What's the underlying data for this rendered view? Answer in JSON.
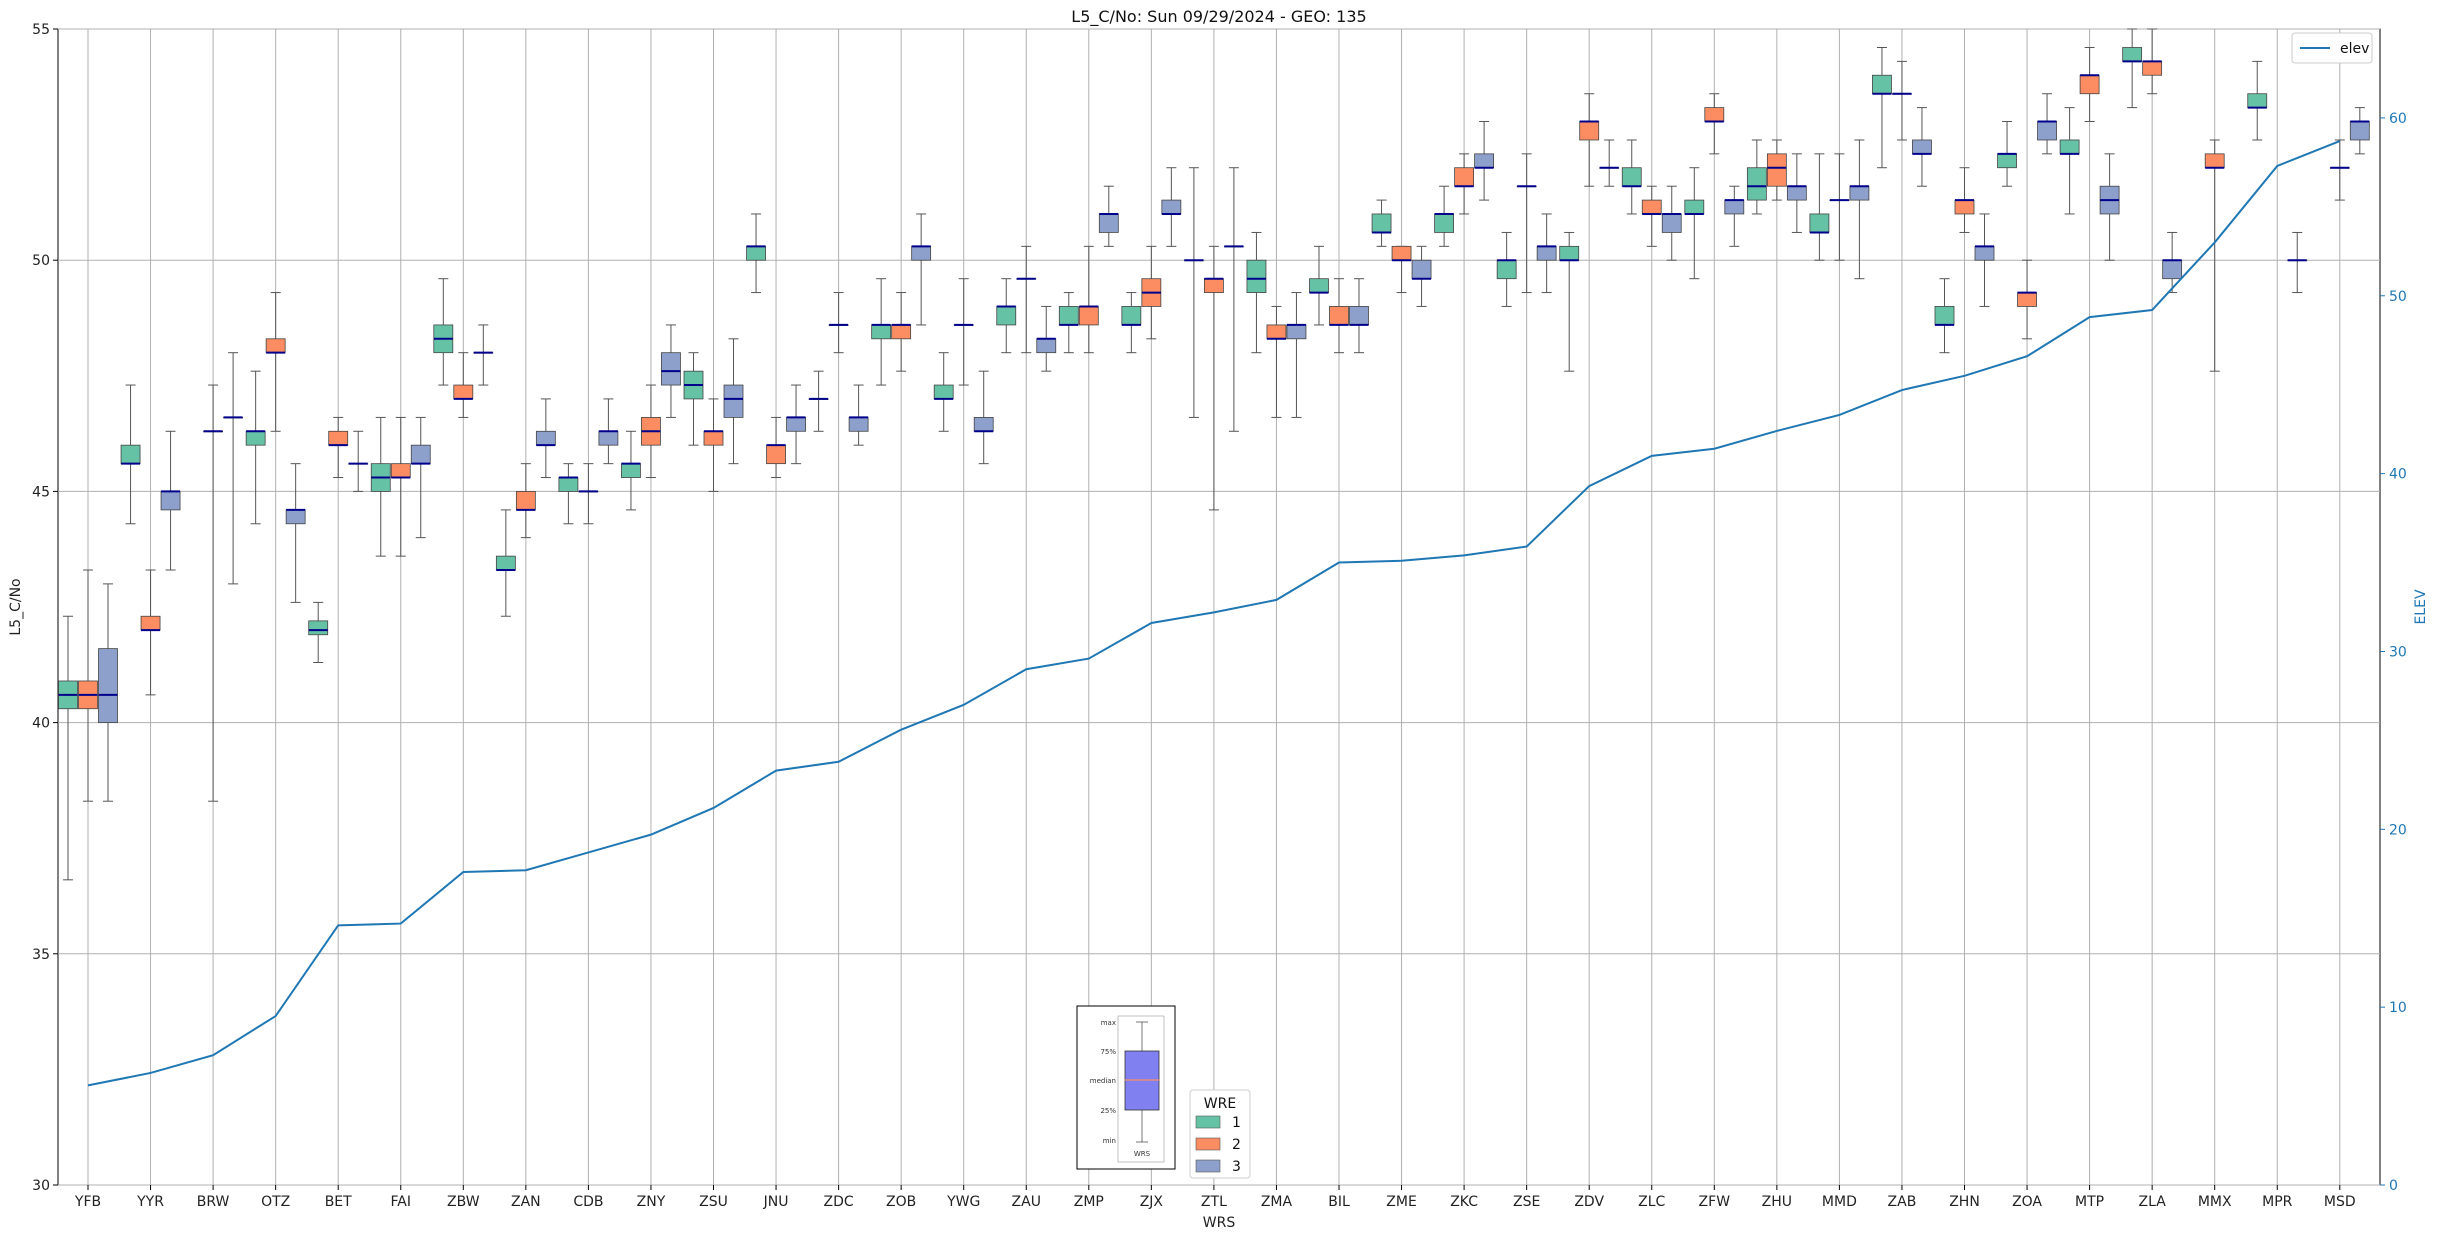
{
  "chart_data": {
    "type": "box",
    "title": "L5_C/No: Sun 09/29/2024 - GEO: 135",
    "xlabel": "WRS",
    "ylabel": "L5_C/No",
    "y2label": "ELEV",
    "ylim": [
      30,
      55
    ],
    "y2lim": [
      0,
      65
    ],
    "yticks": [
      30,
      35,
      40,
      45,
      50,
      55
    ],
    "y2ticks": [
      0,
      10,
      20,
      30,
      40,
      50,
      60
    ],
    "grid": true,
    "categories": [
      "YFB",
      "YYR",
      "BRW",
      "OTZ",
      "BET",
      "FAI",
      "ZBW",
      "ZAN",
      "CDB",
      "ZNY",
      "ZSU",
      "JNU",
      "ZDC",
      "ZOB",
      "YWG",
      "ZAU",
      "ZMP",
      "ZJX",
      "ZTL",
      "ZMA",
      "BIL",
      "ZME",
      "ZKC",
      "ZSE",
      "ZDV",
      "ZLC",
      "ZFW",
      "ZHU",
      "MMD",
      "ZAB",
      "ZHN",
      "ZOA",
      "MTP",
      "ZLA",
      "MMX",
      "MPR",
      "MSD"
    ],
    "colors": {
      "wre1": "#66c2a5",
      "wre2": "#fc8d62",
      "wre3": "#8da0cb",
      "median": "#00008b",
      "elev": "#1f77b4",
      "whisker": "#555555"
    },
    "series": [
      {
        "name": "1",
        "boxes": [
          [
            36.6,
            40.3,
            40.6,
            40.9,
            42.3
          ],
          [
            44.3,
            45.6,
            45.6,
            46.0,
            47.3
          ],
          null,
          [
            44.3,
            46.0,
            46.3,
            46.3,
            47.6
          ],
          [
            41.3,
            41.9,
            42.0,
            42.2,
            42.6
          ],
          [
            43.6,
            45.0,
            45.3,
            45.6,
            46.6
          ],
          [
            47.3,
            48.0,
            48.3,
            48.6,
            49.6
          ],
          [
            42.3,
            43.3,
            43.3,
            43.6,
            44.6
          ],
          [
            44.3,
            45.0,
            45.3,
            45.3,
            45.6
          ],
          [
            44.6,
            45.3,
            45.6,
            45.6,
            46.3
          ],
          [
            46.0,
            47.0,
            47.3,
            47.6,
            48.0
          ],
          [
            49.3,
            50.0,
            50.3,
            50.3,
            51.0
          ],
          [
            46.3,
            47.0,
            47.0,
            47.0,
            47.6
          ],
          [
            47.3,
            48.3,
            48.6,
            48.6,
            49.6
          ],
          [
            46.3,
            47.0,
            47.0,
            47.3,
            48.0
          ],
          [
            48.0,
            48.6,
            49.0,
            49.0,
            49.6
          ],
          [
            48.0,
            48.6,
            48.6,
            49.0,
            49.3
          ],
          [
            48.0,
            48.6,
            48.6,
            49.0,
            49.3
          ],
          [
            46.6,
            50.0,
            50.0,
            50.0,
            52.0
          ],
          [
            48.0,
            49.3,
            49.6,
            50.0,
            50.6
          ],
          [
            48.6,
            49.3,
            49.3,
            49.6,
            50.3
          ],
          [
            50.3,
            50.6,
            50.6,
            51.0,
            51.3
          ],
          [
            50.3,
            50.6,
            51.0,
            51.0,
            51.6
          ],
          [
            49.0,
            49.6,
            50.0,
            50.0,
            50.6
          ],
          [
            47.6,
            50.0,
            50.0,
            50.3,
            50.6
          ],
          [
            51.0,
            51.6,
            51.6,
            52.0,
            52.6
          ],
          [
            49.6,
            51.0,
            51.0,
            51.3,
            52.0
          ],
          [
            51.0,
            51.3,
            51.6,
            52.0,
            52.6
          ],
          [
            50.0,
            50.6,
            50.6,
            51.0,
            52.3
          ],
          [
            52.0,
            53.6,
            53.6,
            54.0,
            54.6
          ],
          [
            48.0,
            48.6,
            48.6,
            49.0,
            49.6
          ],
          [
            51.6,
            52.0,
            52.3,
            52.3,
            53.0
          ],
          [
            51.0,
            52.3,
            52.3,
            52.6,
            53.3
          ],
          [
            53.3,
            54.3,
            54.3,
            54.6,
            55.0
          ],
          null,
          [
            52.6,
            53.3,
            53.3,
            53.6,
            54.3
          ],
          null
        ]
      },
      {
        "name": "2",
        "boxes": [
          [
            38.3,
            40.3,
            40.6,
            40.9,
            43.3
          ],
          [
            40.6,
            42.0,
            42.0,
            42.3,
            43.3
          ],
          [
            38.3,
            46.3,
            46.3,
            46.3,
            47.3
          ],
          [
            46.3,
            48.0,
            48.0,
            48.3,
            49.3
          ],
          [
            45.3,
            46.0,
            46.0,
            46.3,
            46.6
          ],
          [
            43.6,
            45.3,
            45.3,
            45.6,
            46.6
          ],
          [
            46.6,
            47.0,
            47.0,
            47.3,
            48.0
          ],
          [
            44.0,
            44.6,
            44.6,
            45.0,
            45.6
          ],
          [
            44.3,
            45.0,
            45.0,
            45.0,
            45.6
          ],
          [
            45.3,
            46.0,
            46.3,
            46.6,
            47.3
          ],
          [
            45.0,
            46.0,
            46.3,
            46.3,
            47.0
          ],
          [
            45.3,
            45.6,
            46.0,
            46.0,
            46.6
          ],
          [
            48.0,
            48.6,
            48.6,
            48.6,
            49.3
          ],
          [
            47.6,
            48.3,
            48.6,
            48.6,
            49.3
          ],
          [
            47.3,
            48.6,
            48.6,
            48.6,
            49.6
          ],
          [
            48.0,
            49.6,
            49.6,
            49.6,
            50.3
          ],
          [
            48.0,
            48.6,
            49.0,
            49.0,
            50.3
          ],
          [
            48.3,
            49.0,
            49.3,
            49.6,
            50.3
          ],
          [
            44.6,
            49.3,
            49.6,
            49.6,
            50.3
          ],
          [
            46.6,
            48.3,
            48.3,
            48.6,
            49.0
          ],
          [
            48.0,
            48.6,
            48.6,
            49.0,
            49.6
          ],
          [
            49.3,
            50.0,
            50.0,
            50.3,
            50.3
          ],
          [
            51.0,
            51.6,
            51.6,
            52.0,
            52.3
          ],
          [
            49.3,
            51.6,
            51.6,
            51.6,
            52.3
          ],
          [
            51.6,
            52.6,
            53.0,
            53.0,
            53.6
          ],
          [
            50.3,
            51.0,
            51.0,
            51.3,
            51.6
          ],
          [
            52.3,
            53.0,
            53.0,
            53.3,
            53.6
          ],
          [
            51.3,
            51.6,
            52.0,
            52.3,
            52.6
          ],
          [
            50.0,
            51.3,
            51.3,
            51.3,
            52.3
          ],
          [
            52.6,
            53.6,
            53.6,
            53.6,
            54.3
          ],
          [
            50.6,
            51.0,
            51.3,
            51.3,
            52.0
          ],
          [
            48.3,
            49.0,
            49.3,
            49.3,
            50.0
          ],
          [
            53.0,
            53.6,
            54.0,
            54.0,
            54.6
          ],
          [
            53.6,
            54.0,
            54.3,
            54.3,
            55.0
          ],
          [
            47.6,
            52.0,
            52.0,
            52.3,
            52.6
          ],
          null,
          [
            51.3,
            52.0,
            52.0,
            52.0,
            52.6
          ]
        ]
      },
      {
        "name": "3",
        "boxes": [
          [
            38.3,
            40.0,
            40.6,
            41.6,
            43.0
          ],
          [
            43.3,
            44.6,
            45.0,
            45.0,
            46.3
          ],
          [
            43.0,
            46.6,
            46.6,
            46.6,
            48.0
          ],
          [
            42.6,
            44.3,
            44.6,
            44.6,
            45.6
          ],
          [
            45.0,
            45.6,
            45.6,
            45.6,
            46.3
          ],
          [
            44.0,
            45.6,
            45.6,
            46.0,
            46.6
          ],
          [
            47.3,
            48.0,
            48.0,
            48.0,
            48.6
          ],
          [
            45.3,
            46.0,
            46.0,
            46.3,
            47.0
          ],
          [
            45.6,
            46.0,
            46.3,
            46.3,
            47.0
          ],
          [
            46.6,
            47.3,
            47.6,
            48.0,
            48.6
          ],
          [
            45.6,
            46.6,
            47.0,
            47.3,
            48.3
          ],
          [
            45.6,
            46.3,
            46.6,
            46.6,
            47.3
          ],
          [
            46.0,
            46.3,
            46.6,
            46.6,
            47.3
          ],
          [
            48.6,
            50.0,
            50.3,
            50.3,
            51.0
          ],
          [
            45.6,
            46.3,
            46.3,
            46.6,
            47.6
          ],
          [
            47.6,
            48.0,
            48.3,
            48.3,
            49.0
          ],
          [
            50.3,
            50.6,
            51.0,
            51.0,
            51.6
          ],
          [
            50.3,
            51.0,
            51.0,
            51.3,
            52.0
          ],
          [
            46.3,
            50.3,
            50.3,
            50.3,
            52.0
          ],
          [
            46.6,
            48.3,
            48.6,
            48.6,
            49.3
          ],
          [
            48.0,
            48.6,
            48.6,
            49.0,
            49.6
          ],
          [
            49.0,
            49.6,
            49.6,
            50.0,
            50.3
          ],
          [
            51.3,
            52.0,
            52.0,
            52.3,
            53.0
          ],
          [
            49.3,
            50.0,
            50.3,
            50.3,
            51.0
          ],
          [
            51.6,
            52.0,
            52.0,
            52.0,
            52.6
          ],
          [
            50.0,
            50.6,
            51.0,
            51.0,
            51.6
          ],
          [
            50.3,
            51.0,
            51.3,
            51.3,
            51.6
          ],
          [
            50.6,
            51.3,
            51.6,
            51.6,
            52.3
          ],
          [
            49.6,
            51.3,
            51.6,
            51.6,
            52.6
          ],
          [
            51.6,
            52.3,
            52.3,
            52.6,
            53.3
          ],
          [
            49.0,
            50.0,
            50.3,
            50.3,
            51.0
          ],
          [
            52.3,
            52.6,
            53.0,
            53.0,
            53.6
          ],
          [
            50.0,
            51.0,
            51.3,
            51.6,
            52.3
          ],
          [
            49.3,
            49.6,
            50.0,
            50.0,
            50.6
          ],
          null,
          [
            49.3,
            50.0,
            50.0,
            50.0,
            50.6
          ],
          [
            52.3,
            52.6,
            53.0,
            53.0,
            53.3
          ]
        ]
      }
    ],
    "elev": [
      5.6,
      6.3,
      7.3,
      9.5,
      14.6,
      14.7,
      17.6,
      17.7,
      18.7,
      19.7,
      21.2,
      23.3,
      23.8,
      25.6,
      27.0,
      29.0,
      29.6,
      31.6,
      32.2,
      32.9,
      35.0,
      35.1,
      35.4,
      35.9,
      39.3,
      41.0,
      41.4,
      42.4,
      43.3,
      44.7,
      45.5,
      46.6,
      48.8,
      49.2,
      53.0,
      57.3,
      58.7
    ],
    "legend": {
      "title": "WRE",
      "entries": [
        "1",
        "2",
        "3"
      ],
      "placement": "lower-center"
    },
    "line_legend": {
      "entries": [
        "elev"
      ],
      "placement": "upper-right"
    },
    "inset": {
      "labels": [
        "max",
        "75%",
        "median",
        "25%",
        "min"
      ],
      "xlabel": "WRS"
    }
  }
}
